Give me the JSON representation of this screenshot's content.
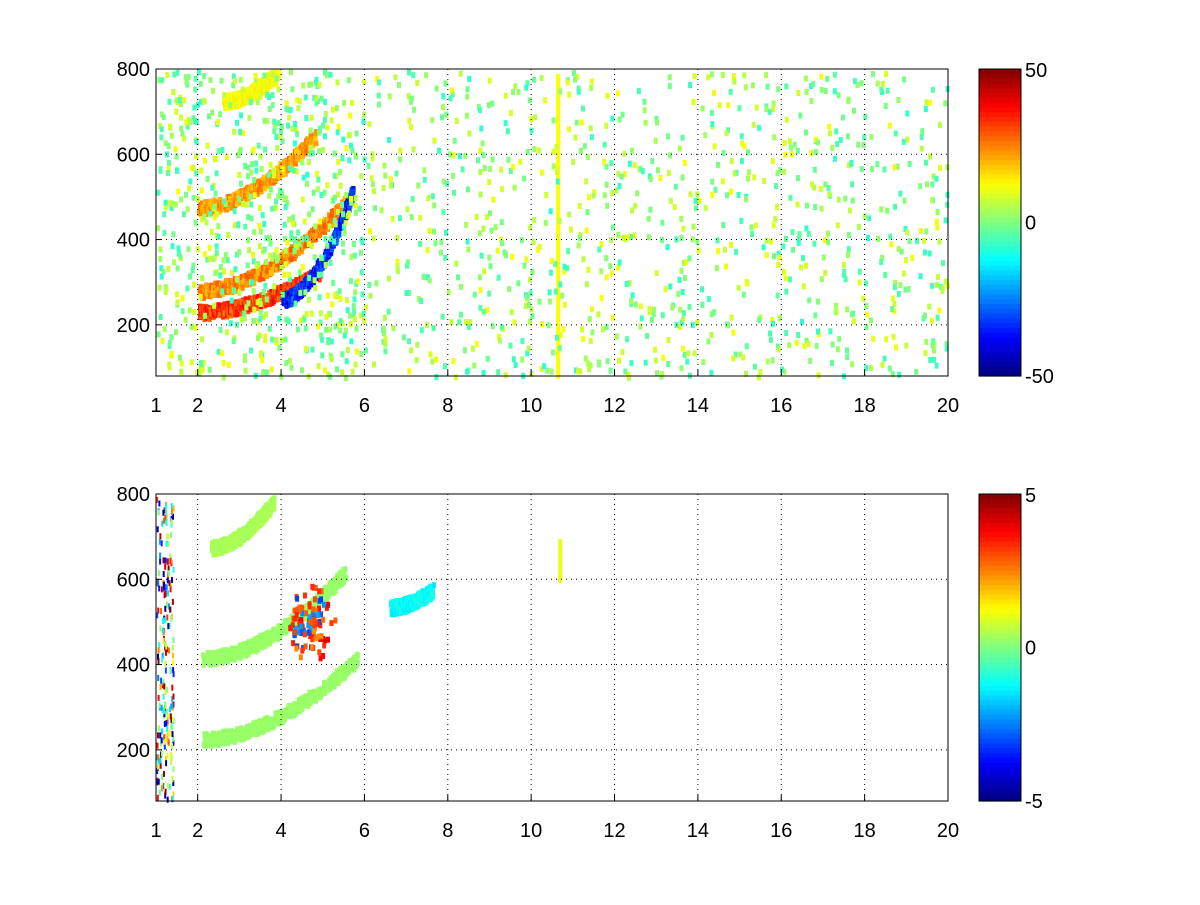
{
  "chart_data": [
    {
      "type": "heatmap",
      "title": "",
      "xlabel": "",
      "ylabel": "",
      "xlim": [
        1,
        20
      ],
      "ylim": [
        80,
        800
      ],
      "xticks": [
        "1",
        "2",
        "4",
        "6",
        "8",
        "10",
        "12",
        "14",
        "16",
        "18",
        "20"
      ],
      "yticks": [
        "200",
        "400",
        "600",
        "800"
      ],
      "grid": true,
      "colormap": "jet",
      "colorbar": {
        "range": [
          -50,
          50
        ],
        "ticks": [
          "50",
          "0",
          "-50"
        ]
      },
      "features": [
        {
          "desc": "positive band",
          "from": [
            2.0,
            235
          ],
          "to": [
            4.9,
            330
          ],
          "value": 40
        },
        {
          "desc": "positive band",
          "from": [
            2.0,
            285
          ],
          "to": [
            5.6,
            500
          ],
          "value": 30
        },
        {
          "desc": "positive band",
          "from": [
            2.0,
            480
          ],
          "to": [
            4.8,
            650
          ],
          "value": 28
        },
        {
          "desc": "positive band",
          "from": [
            2.6,
            730
          ],
          "to": [
            3.9,
            800
          ],
          "value": 15
        },
        {
          "desc": "negative band",
          "from": [
            4.0,
            265
          ],
          "to": [
            5.7,
            520
          ],
          "value": -42
        },
        {
          "desc": "vertical streak",
          "x": 10.6,
          "value": 12
        }
      ],
      "scatter_value_range": [
        -8,
        12
      ]
    },
    {
      "type": "heatmap",
      "title": "",
      "xlabel": "",
      "ylabel": "",
      "xlim": [
        1,
        20
      ],
      "ylim": [
        80,
        800
      ],
      "xticks": [
        "1",
        "2",
        "4",
        "6",
        "8",
        "10",
        "12",
        "14",
        "16",
        "18",
        "20"
      ],
      "yticks": [
        "200",
        "400",
        "600",
        "800"
      ],
      "grid": true,
      "colormap": "jet",
      "colorbar": {
        "range": [
          -5,
          5
        ],
        "ticks": [
          "5",
          "0",
          "-5"
        ]
      },
      "features": [
        {
          "desc": "lower band",
          "from": [
            2.1,
            230
          ],
          "to": [
            5.8,
            420
          ],
          "value": 0.3
        },
        {
          "desc": "upper band",
          "from": [
            2.1,
            420
          ],
          "to": [
            5.5,
            620
          ],
          "value": 0.3
        },
        {
          "desc": "top band",
          "from": [
            2.3,
            680
          ],
          "to": [
            3.8,
            790
          ],
          "value": 0.5
        },
        {
          "desc": "hot cluster",
          "center": [
            4.7,
            500
          ],
          "value": 4
        },
        {
          "desc": "cyan patch",
          "from": [
            6.6,
            540
          ],
          "to": [
            7.6,
            580
          ],
          "value": -1.5
        },
        {
          "desc": "short streak",
          "x": 10.65,
          "from_y": 610,
          "to_y": 700,
          "value": 1
        }
      ]
    }
  ]
}
